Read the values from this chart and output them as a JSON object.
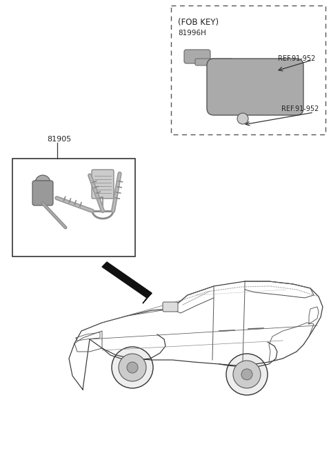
{
  "bg_color": "#ffffff",
  "line_color": "#333333",
  "text_color": "#222222",
  "fob_box": {
    "label": "(FOB KEY)",
    "part_number": "81996H",
    "ref1": "REF.91-952",
    "ref2": "REF.91-952"
  },
  "key_box": {
    "label": "81905"
  }
}
